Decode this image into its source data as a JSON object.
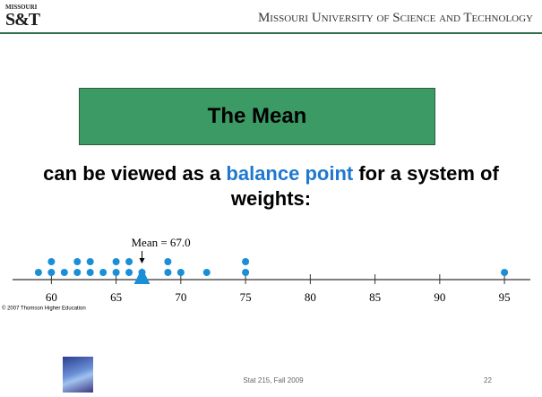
{
  "logo": {
    "top": "MISSOURI",
    "main": "S&T"
  },
  "header": {
    "title": "Missouri University of Science and Technology"
  },
  "slide": {
    "title": "The Mean",
    "body": {
      "before": "can be viewed as a ",
      "highlight": "balance point",
      "after": " for a system of weights:"
    }
  },
  "chart_data": {
    "type": "dot",
    "values": [
      59,
      60,
      60,
      61,
      62,
      62,
      63,
      63,
      64,
      65,
      65,
      66,
      66,
      67,
      69,
      69,
      70,
      72,
      75,
      75,
      95
    ],
    "color": "#1a8fd8",
    "xlim": [
      57,
      97
    ],
    "xticks": [
      60,
      65,
      70,
      75,
      80,
      85,
      90,
      95
    ],
    "mean": 67.0,
    "mean_label": "Mean = 67.0",
    "credit": "© 2007 Thomson Higher Education"
  },
  "footer": {
    "course": "Stat 215, Fall 2009",
    "page": "22"
  }
}
